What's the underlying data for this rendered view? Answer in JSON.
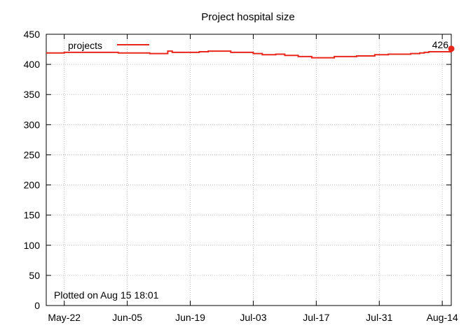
{
  "chart_data": {
    "type": "line",
    "title": "Project hospital size",
    "xlabel": "",
    "ylabel": "",
    "x_ticks": [
      "May-22",
      "Jun-05",
      "Jun-19",
      "Jul-03",
      "Jul-17",
      "Jul-31",
      "Aug-14"
    ],
    "y_ticks": [
      "0",
      "50",
      "100",
      "150",
      "200",
      "250",
      "300",
      "350",
      "400",
      "450"
    ],
    "ylim": [
      0,
      450
    ],
    "xlim": [
      "2017-05-18",
      "2017-08-16"
    ],
    "grid": true,
    "legend_position": "top-left",
    "series": [
      {
        "name": "projects",
        "color": "#e8281c",
        "points": [
          [
            "2017-05-18",
            419
          ],
          [
            "2017-05-22",
            420
          ],
          [
            "2017-05-26",
            420
          ],
          [
            "2017-05-30",
            420
          ],
          [
            "2017-06-03",
            419
          ],
          [
            "2017-06-07",
            419
          ],
          [
            "2017-06-10",
            418
          ],
          [
            "2017-06-13",
            418
          ],
          [
            "2017-06-14",
            422
          ],
          [
            "2017-06-15",
            420
          ],
          [
            "2017-06-18",
            420
          ],
          [
            "2017-06-21",
            421
          ],
          [
            "2017-06-23",
            422
          ],
          [
            "2017-06-26",
            422
          ],
          [
            "2017-06-28",
            420
          ],
          [
            "2017-06-30",
            420
          ],
          [
            "2017-07-03",
            418
          ],
          [
            "2017-07-05",
            416
          ],
          [
            "2017-07-08",
            417
          ],
          [
            "2017-07-10",
            415
          ],
          [
            "2017-07-13",
            413
          ],
          [
            "2017-07-16",
            411
          ],
          [
            "2017-07-19",
            411
          ],
          [
            "2017-07-21",
            413
          ],
          [
            "2017-07-24",
            413
          ],
          [
            "2017-07-26",
            414
          ],
          [
            "2017-07-28",
            414
          ],
          [
            "2017-07-30",
            416
          ],
          [
            "2017-08-02",
            417
          ],
          [
            "2017-08-05",
            417
          ],
          [
            "2017-08-07",
            418
          ],
          [
            "2017-08-09",
            419
          ],
          [
            "2017-08-10",
            420
          ],
          [
            "2017-08-11",
            421
          ],
          [
            "2017-08-13",
            421
          ],
          [
            "2017-08-15",
            421
          ],
          [
            "2017-08-16",
            426
          ]
        ]
      }
    ],
    "last_value_label": "426",
    "annotation": "Plotted on Aug 15 18:01"
  }
}
